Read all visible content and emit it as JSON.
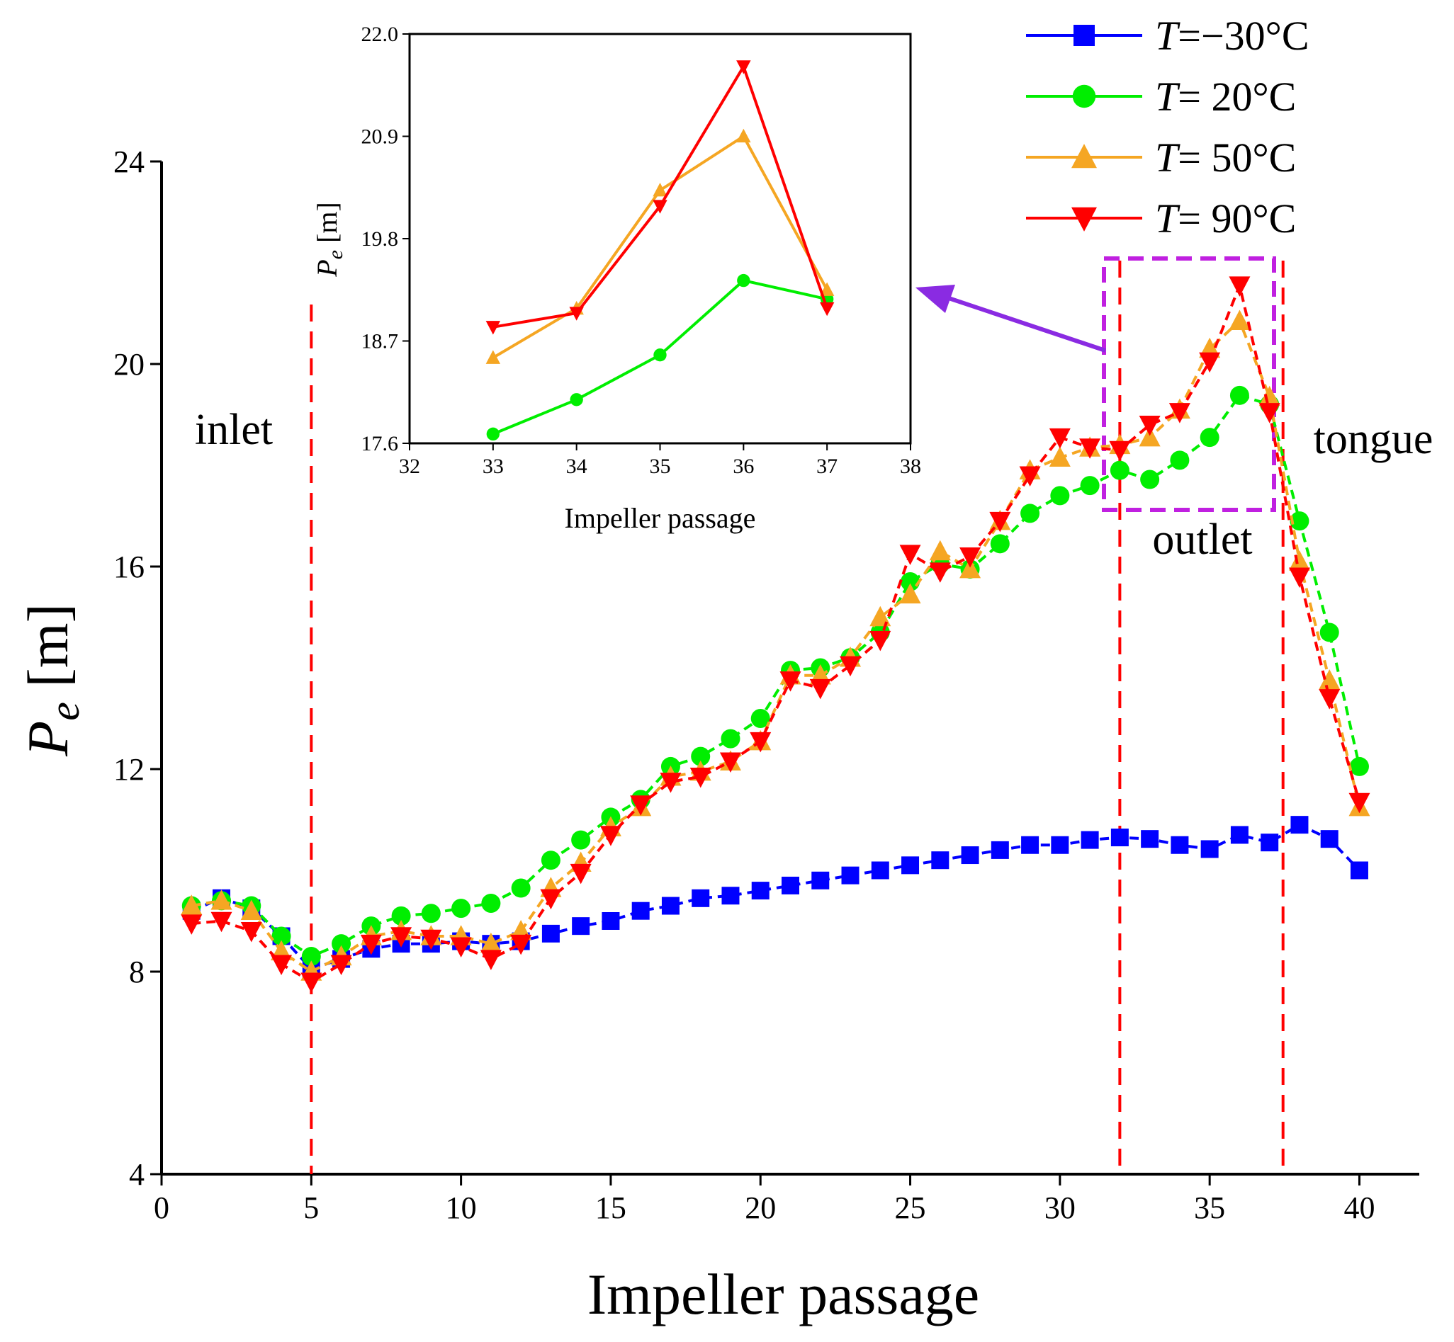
{
  "chart_data": [
    {
      "type": "line",
      "title": "",
      "xlabel": "Impeller passage",
      "ylabel": "P_e [m]",
      "ylabel_main": "P",
      "ylabel_sub": "e",
      "ylabel_unit": " [m]",
      "xlim": [
        0,
        42
      ],
      "ylim": [
        4,
        24
      ],
      "xticks": [
        0,
        5,
        10,
        15,
        20,
        25,
        30,
        35,
        40
      ],
      "yticks": [
        4,
        8,
        12,
        16,
        20,
        24
      ],
      "x": [
        1,
        2,
        3,
        4,
        5,
        6,
        7,
        8,
        9,
        10,
        11,
        12,
        13,
        14,
        15,
        16,
        17,
        18,
        19,
        20,
        21,
        22,
        23,
        24,
        25,
        26,
        27,
        28,
        29,
        30,
        31,
        32,
        33,
        34,
        35,
        36,
        37,
        38,
        39,
        40
      ],
      "series": [
        {
          "name": "T=−30°C",
          "legend_var": "T",
          "legend_rest": "=−30°C",
          "color": "#0000ff",
          "marker": "square",
          "values": [
            9.2,
            9.45,
            9.25,
            8.7,
            8.05,
            8.25,
            8.45,
            8.55,
            8.55,
            8.6,
            8.55,
            8.6,
            8.75,
            8.9,
            9.0,
            9.2,
            9.3,
            9.45,
            9.5,
            9.6,
            9.7,
            9.8,
            9.9,
            10.0,
            10.1,
            10.2,
            10.3,
            10.4,
            10.5,
            10.5,
            10.6,
            10.65,
            10.62,
            10.5,
            10.42,
            10.7,
            10.55,
            10.9,
            10.62,
            10.0
          ]
        },
        {
          "name": "T= 20°C",
          "legend_var": "T",
          "legend_rest": "=  20°C",
          "color": "#00ee00",
          "marker": "circle",
          "values": [
            9.3,
            9.4,
            9.3,
            8.7,
            8.3,
            8.55,
            8.9,
            9.1,
            9.15,
            9.25,
            9.35,
            9.65,
            10.2,
            10.6,
            11.05,
            11.4,
            12.05,
            12.25,
            12.6,
            13.0,
            13.95,
            14.0,
            14.2,
            14.7,
            15.7,
            16.05,
            15.95,
            16.45,
            17.05,
            17.4,
            17.6,
            17.9,
            17.72,
            18.1,
            18.55,
            19.38,
            19.2,
            16.9,
            14.7,
            12.05
          ]
        },
        {
          "name": "T= 50°C",
          "legend_var": "T",
          "legend_rest": "=  50°C",
          "color": "#f5a623",
          "marker": "triangle-up",
          "values": [
            9.3,
            9.4,
            9.2,
            8.4,
            8.0,
            8.3,
            8.7,
            8.8,
            8.7,
            8.7,
            8.55,
            8.8,
            9.65,
            10.15,
            10.85,
            11.25,
            11.85,
            11.95,
            12.15,
            12.55,
            13.85,
            13.85,
            14.2,
            15.0,
            15.45,
            16.3,
            15.95,
            16.9,
            17.9,
            18.15,
            18.35,
            18.4,
            18.55,
            19.1,
            20.3,
            20.85,
            19.35,
            16.1,
            13.75,
            11.25
          ]
        },
        {
          "name": "T= 90°C",
          "legend_var": "T",
          "legend_rest": "=  90°C",
          "color": "#ff0000",
          "marker": "triangle-down",
          "values": [
            8.95,
            9.0,
            8.8,
            8.15,
            7.8,
            8.15,
            8.55,
            8.7,
            8.65,
            8.5,
            8.25,
            8.55,
            9.45,
            9.95,
            10.7,
            11.3,
            11.75,
            11.85,
            12.15,
            12.55,
            13.75,
            13.6,
            14.05,
            14.55,
            16.25,
            15.9,
            16.2,
            16.9,
            17.8,
            18.55,
            18.35,
            18.3,
            18.8,
            19.05,
            20.05,
            21.55,
            19.05,
            15.8,
            13.4,
            11.35
          ]
        }
      ],
      "annotations": {
        "inlet": "inlet",
        "outlet": "outlet",
        "tongue": "tongue"
      }
    },
    {
      "type": "line",
      "title": "",
      "xlabel": "Impeller passage",
      "ylabel": "P_e [m]",
      "ylabel_main": "P",
      "ylabel_sub": "e",
      "ylabel_unit": " [m]",
      "xlim": [
        32,
        38
      ],
      "ylim": [
        17.6,
        22.0
      ],
      "xticks": [
        32,
        33,
        34,
        35,
        36,
        37,
        38
      ],
      "yticks": [
        "17.6",
        "18.7",
        "19.8",
        "20.9",
        "22.0"
      ],
      "x": [
        33,
        34,
        35,
        36,
        37
      ],
      "series": [
        {
          "name": "T= 20°C",
          "color": "#00ee00",
          "marker": "circle",
          "values": [
            17.7,
            18.07,
            18.55,
            19.35,
            19.15
          ]
        },
        {
          "name": "T= 50°C",
          "color": "#f5a623",
          "marker": "triangle-up",
          "values": [
            18.52,
            19.05,
            20.32,
            20.9,
            19.25
          ]
        },
        {
          "name": "T= 90°C",
          "color": "#ff0000",
          "marker": "triangle-down",
          "values": [
            18.85,
            19.0,
            20.15,
            21.65,
            19.05
          ]
        }
      ]
    }
  ]
}
